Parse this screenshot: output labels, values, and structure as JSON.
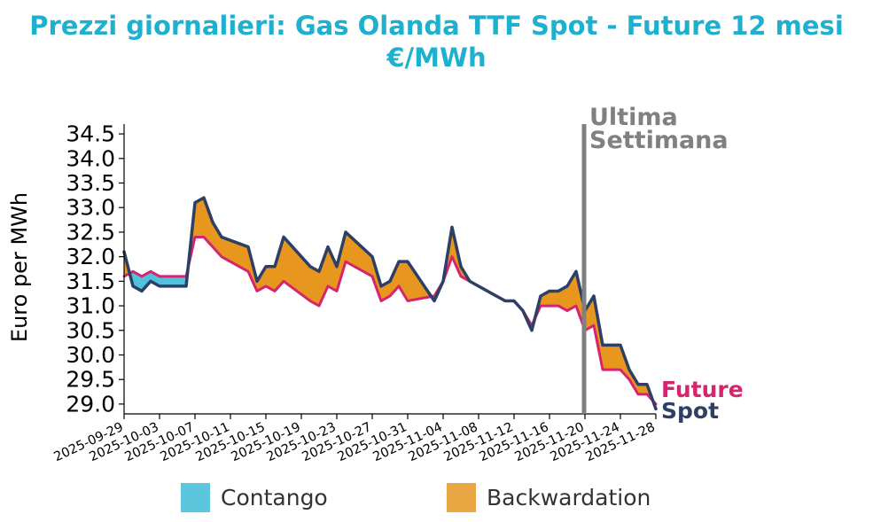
{
  "title_line1": "Prezzi giornalieri: Gas Olanda TTF Spot - Future 12 mesi",
  "title_line2": "€/MWh",
  "colors": {
    "title": "#1eb0cf",
    "spot": "#2e3f66",
    "future": "#d6246e",
    "contango": "#4fc3dc",
    "backwardation": "#e8971e",
    "backwardation_legend": "#eaa844",
    "contango_legend": "#5cc6dd",
    "marker": "#808080"
  },
  "chart_data": {
    "type": "line",
    "title": "Prezzi giornalieri: Gas Olanda TTF Spot - Future 12 mesi €/MWh",
    "xlabel": "",
    "ylabel": "Euro per MWh",
    "ylim": [
      28.8,
      34.7
    ],
    "y_ticks": [
      "29.0",
      "29.5",
      "30.0",
      "30.5",
      "31.0",
      "31.5",
      "32.0",
      "32.5",
      "33.0",
      "33.5",
      "34.0",
      "34.5"
    ],
    "x_ticks": [
      "2025-09-29",
      "2025-10-03",
      "2025-10-07",
      "2025-10-11",
      "2025-10-15",
      "2025-10-19",
      "2025-10-23",
      "2025-10-27",
      "2025-10-31",
      "2025-11-04",
      "2025-11-08",
      "2025-11-12",
      "2025-11-16",
      "2025-11-20",
      "2025-11-24",
      "2025-11-28"
    ],
    "x_range": [
      "2025-09-29",
      "2025-11-28"
    ],
    "grid": false,
    "legend": "bottom",
    "fill_legend": [
      "Contango",
      "Backwardation"
    ],
    "end_labels": [
      "Future",
      "Spot"
    ],
    "vline": {
      "x": "2025-11-21",
      "label_line1": "Ultima",
      "label_line2": "Settimana"
    },
    "series": [
      {
        "name": "Spot",
        "points": [
          [
            "2025-09-29",
            32.1
          ],
          [
            "2025-09-30",
            31.4
          ],
          [
            "2025-10-01",
            31.3
          ],
          [
            "2025-10-02",
            31.5
          ],
          [
            "2025-10-03",
            31.4
          ],
          [
            "2025-10-06",
            31.4
          ],
          [
            "2025-10-07",
            33.1
          ],
          [
            "2025-10-08",
            33.2
          ],
          [
            "2025-10-09",
            32.7
          ],
          [
            "2025-10-10",
            32.4
          ],
          [
            "2025-10-13",
            32.2
          ],
          [
            "2025-10-14",
            31.5
          ],
          [
            "2025-10-15",
            31.8
          ],
          [
            "2025-10-16",
            31.8
          ],
          [
            "2025-10-17",
            32.4
          ],
          [
            "2025-10-20",
            31.8
          ],
          [
            "2025-10-21",
            31.7
          ],
          [
            "2025-10-22",
            32.2
          ],
          [
            "2025-10-23",
            31.8
          ],
          [
            "2025-10-24",
            32.5
          ],
          [
            "2025-10-27",
            32.0
          ],
          [
            "2025-10-28",
            31.4
          ],
          [
            "2025-10-29",
            31.5
          ],
          [
            "2025-10-30",
            31.9
          ],
          [
            "2025-10-31",
            31.9
          ],
          [
            "2025-11-03",
            31.1
          ],
          [
            "2025-11-04",
            31.5
          ],
          [
            "2025-11-05",
            32.6
          ],
          [
            "2025-11-06",
            31.8
          ],
          [
            "2025-11-07",
            31.5
          ],
          [
            "2025-11-10",
            31.2
          ],
          [
            "2025-11-11",
            31.1
          ],
          [
            "2025-11-12",
            31.1
          ],
          [
            "2025-11-13",
            30.9
          ],
          [
            "2025-11-14",
            30.5
          ],
          [
            "2025-11-15",
            31.2
          ],
          [
            "2025-11-16",
            31.3
          ],
          [
            "2025-11-17",
            31.3
          ],
          [
            "2025-11-18",
            31.4
          ],
          [
            "2025-11-19",
            31.7
          ],
          [
            "2025-11-20",
            30.9
          ],
          [
            "2025-11-21",
            31.2
          ],
          [
            "2025-11-22",
            30.2
          ],
          [
            "2025-11-24",
            30.2
          ],
          [
            "2025-11-25",
            29.7
          ],
          [
            "2025-11-26",
            29.4
          ],
          [
            "2025-11-27",
            29.4
          ],
          [
            "2025-11-28",
            28.9
          ]
        ]
      },
      {
        "name": "Future",
        "points": [
          [
            "2025-09-29",
            31.6
          ],
          [
            "2025-09-30",
            31.7
          ],
          [
            "2025-10-01",
            31.6
          ],
          [
            "2025-10-02",
            31.7
          ],
          [
            "2025-10-03",
            31.6
          ],
          [
            "2025-10-06",
            31.6
          ],
          [
            "2025-10-07",
            32.4
          ],
          [
            "2025-10-08",
            32.4
          ],
          [
            "2025-10-09",
            32.2
          ],
          [
            "2025-10-10",
            32.0
          ],
          [
            "2025-10-13",
            31.7
          ],
          [
            "2025-10-14",
            31.3
          ],
          [
            "2025-10-15",
            31.4
          ],
          [
            "2025-10-16",
            31.3
          ],
          [
            "2025-10-17",
            31.5
          ],
          [
            "2025-10-20",
            31.1
          ],
          [
            "2025-10-21",
            31.0
          ],
          [
            "2025-10-22",
            31.4
          ],
          [
            "2025-10-23",
            31.3
          ],
          [
            "2025-10-24",
            31.9
          ],
          [
            "2025-10-27",
            31.6
          ],
          [
            "2025-10-28",
            31.1
          ],
          [
            "2025-10-29",
            31.2
          ],
          [
            "2025-10-30",
            31.4
          ],
          [
            "2025-10-31",
            31.1
          ],
          [
            "2025-11-03",
            31.2
          ],
          [
            "2025-11-04",
            31.5
          ],
          [
            "2025-11-05",
            32.0
          ],
          [
            "2025-11-06",
            31.6
          ],
          [
            "2025-11-07",
            31.5
          ],
          [
            "2025-11-10",
            31.2
          ],
          [
            "2025-11-11",
            31.1
          ],
          [
            "2025-11-12",
            31.1
          ],
          [
            "2025-11-13",
            30.9
          ],
          [
            "2025-11-14",
            30.6
          ],
          [
            "2025-11-15",
            31.0
          ],
          [
            "2025-11-16",
            31.0
          ],
          [
            "2025-11-17",
            31.0
          ],
          [
            "2025-11-18",
            30.9
          ],
          [
            "2025-11-19",
            31.0
          ],
          [
            "2025-11-20",
            30.5
          ],
          [
            "2025-11-21",
            30.6
          ],
          [
            "2025-11-22",
            29.7
          ],
          [
            "2025-11-24",
            29.7
          ],
          [
            "2025-11-25",
            29.5
          ],
          [
            "2025-11-26",
            29.2
          ],
          [
            "2025-11-27",
            29.2
          ],
          [
            "2025-11-28",
            29.0
          ]
        ]
      }
    ]
  }
}
